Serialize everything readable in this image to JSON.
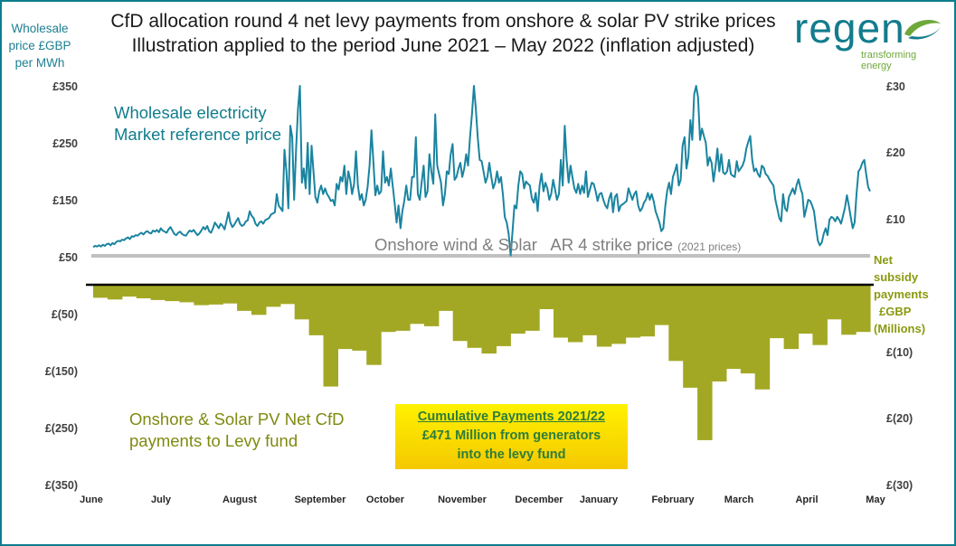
{
  "title_line1": "CfD allocation round 4 net levy payments from onshore & solar PV strike prices",
  "title_line2": "Illustration applied to the period June 2021 – May 2022 (inflation adjusted)",
  "left_axis_label": [
    "Wholesale",
    "price £GBP",
    "per MWh"
  ],
  "right_axis_label": [
    "Net",
    "subsidy",
    "payments",
    "£GBP",
    "(Millions)"
  ],
  "logo": {
    "word": "regen",
    "tagline": "transforming energy"
  },
  "annotations": {
    "wholesale": [
      "Wholesale electricity",
      "Market reference price"
    ],
    "strike": "Onshore wind & Solar   AR 4 strike price",
    "strike_small": "(2021 prices)",
    "levy": [
      "Onshore & Solar PV Net CfD",
      "payments to Levy fund"
    ]
  },
  "cumulative_box": {
    "heading": "Cumulative Payments 2021/22",
    "line1": "£471 Million from generators",
    "line2": "into the levy fund"
  },
  "colors": {
    "price_line": "#1a84a0",
    "bars": "#a3a824",
    "strike_line": "#c0c0c0",
    "frame": "#0d7d8f"
  },
  "chart_data": {
    "type": "line+bar",
    "x_tick_labels": [
      "June",
      "July",
      "August",
      "September",
      "October",
      "November",
      "December",
      "January",
      "February",
      "March",
      "April",
      "May"
    ],
    "left_tick_labels": [
      "£350",
      "£250",
      "£150",
      "£50",
      "£(50)",
      "£(150)",
      "£(250)",
      "£(350)"
    ],
    "right_tick_labels": [
      "£30",
      "£20",
      "£10",
      "£(10)",
      "£(20)",
      "£(30)"
    ],
    "left_range": [
      -350,
      350
    ],
    "strike_price": 52,
    "series": [
      {
        "name": "Wholesale electricity Market reference price",
        "type": "line",
        "values": [
          67,
          69,
          68,
          70,
          68,
          71,
          69,
          72,
          73,
          70,
          74,
          72,
          76,
          78,
          77,
          80,
          79,
          82,
          84,
          81,
          86,
          85,
          88,
          87,
          90,
          92,
          89,
          93,
          95,
          92,
          91,
          96,
          94,
          97,
          93,
          100,
          96,
          94,
          92,
          98,
          102,
          96,
          90,
          88,
          92,
          94,
          90,
          88,
          87,
          92,
          96,
          94,
          97,
          92,
          88,
          91,
          96,
          102,
          98,
          104,
          95,
          92,
          100,
          110,
          105,
          100,
          108,
          104,
          98,
          112,
          128,
          110,
          102,
          106,
          112,
          118,
          108,
          104,
          106,
          112,
          114,
          130,
          122,
          118,
          108,
          104,
          110,
          112,
          108,
          114,
          116,
          118,
          124,
          126,
          128,
          160,
          140,
          135,
          130,
          238,
          200,
          135,
          280,
          260,
          150,
          240,
          310,
          420,
          180,
          205,
          170,
          250,
          160,
          245,
          200,
          155,
          145,
          165,
          175,
          160,
          170,
          160,
          155,
          148,
          150,
          140,
          178,
          168,
          190,
          182,
          210,
          160,
          200,
          185,
          160,
          178,
          235,
          175,
          150,
          160,
          140,
          150,
          172,
          210,
          272,
          218,
          158,
          175,
          160,
          165,
          235,
          180,
          190,
          175,
          205,
          175,
          145,
          110,
          140,
          100,
          130,
          148,
          175,
          150,
          150,
          190,
          190,
          260,
          160,
          150,
          182,
          210,
          155,
          165,
          230,
          200,
          178,
          300,
          210,
          195,
          180,
          140,
          160,
          200,
          195,
          230,
          248,
          185,
          190,
          205,
          215,
          190,
          205,
          230,
          210,
          260,
          300,
          420,
          310,
          260,
          220,
          218,
          200,
          180,
          190,
          215,
          190,
          170,
          180,
          200,
          180,
          190,
          160,
          120,
          110,
          90,
          52,
          95,
          140,
          135,
          175,
          200,
          195,
          170,
          182,
          178,
          175,
          152,
          145,
          162,
          130,
          175,
          196,
          165,
          180,
          170,
          150,
          160,
          185,
          168,
          150,
          160,
          220,
          175,
          280,
          220,
          180,
          210,
          190,
          170,
          162,
          178,
          160,
          175,
          162,
          200,
          155,
          168,
          180,
          178,
          165,
          148,
          160,
          162,
          150,
          140,
          135,
          152,
          162,
          128,
          155,
          160,
          130,
          140,
          142,
          145,
          148,
          170,
          160,
          150,
          160,
          165,
          140,
          130,
          135,
          145,
          150,
          162,
          150,
          160,
          148,
          130,
          120,
          110,
          95,
          100,
          138,
          165,
          180,
          160,
          190,
          200,
          212,
          175,
          185,
          245,
          260,
          205,
          225,
          290,
          255,
          335,
          400,
          330,
          255,
          275,
          262,
          250,
          210,
          225,
          215,
          182,
          208,
          240,
          200,
          230,
          198,
          195,
          200,
          220,
          195,
          192,
          190,
          218,
          200,
          205,
          210,
          220,
          240,
          252,
          262,
          220,
          200,
          205,
          195,
          190,
          210,
          206,
          195,
          192,
          185,
          180,
          175,
          150,
          135,
          118,
          112,
          160,
          135,
          130,
          155,
          162,
          170,
          160,
          176,
          186,
          170,
          160,
          120,
          135,
          150,
          148,
          140,
          130,
          102,
          78,
          70,
          75,
          90,
          100,
          88,
          115,
          120,
          118,
          112,
          120,
          115,
          108,
          122,
          136,
          158,
          140,
          120,
          100,
          110,
          160,
          200,
          205,
          215,
          220,
          195,
          172,
          165
        ]
      },
      {
        "name": "Onshore & Solar PV Net CfD payments to Levy fund",
        "type": "bar",
        "values": [
          -22,
          -25,
          -20,
          -23,
          -26,
          -28,
          -30,
          -35,
          -34,
          -32,
          -45,
          -52,
          -38,
          -33,
          -60,
          -88,
          -178,
          -112,
          -115,
          -140,
          -82,
          -80,
          -68,
          -72,
          -45,
          -98,
          -110,
          -120,
          -107,
          -85,
          -80,
          -42,
          -92,
          -100,
          -88,
          -108,
          -103,
          -92,
          -90,
          -70,
          -133,
          -180,
          -272,
          -169,
          -147,
          -155,
          -183,
          -93,
          -112,
          -85,
          -105,
          -60,
          -87,
          -82
        ]
      }
    ]
  }
}
